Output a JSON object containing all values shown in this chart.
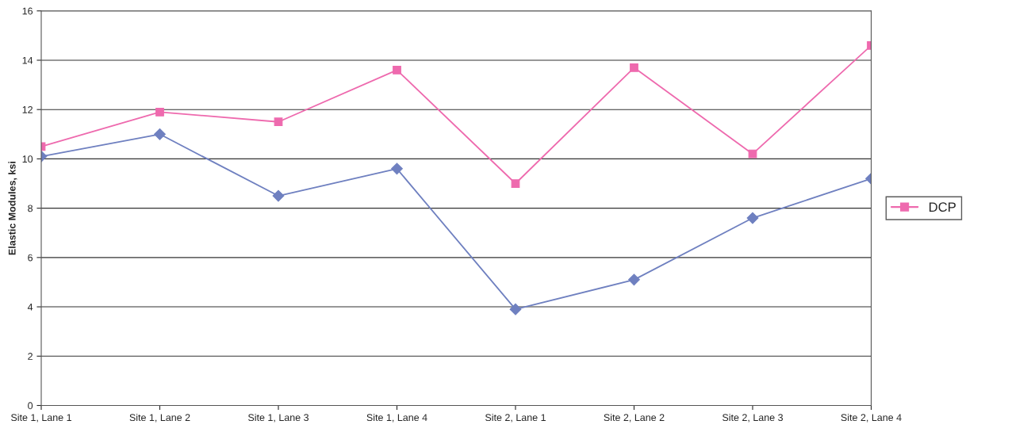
{
  "chart_data": {
    "type": "line",
    "ylabel": "Elastic Modules, ksi",
    "categories": [
      "Site 1, Lane 1",
      "Site 1, Lane 2",
      "Site 1, Lane 3",
      "Site 1, Lane 4",
      "Site 2, Lane 1",
      "Site 2, Lane 2",
      "Site 2, Lane 3",
      "Site 2, Lane 4"
    ],
    "series": [
      {
        "color": "#6f80c0",
        "marker": "diamond",
        "values": [
          10.1,
          11.0,
          8.5,
          9.6,
          3.9,
          5.1,
          7.6,
          9.2
        ]
      },
      {
        "name": "DCP",
        "color": "#ee6aae",
        "marker": "square",
        "values": [
          10.5,
          11.9,
          11.5,
          13.6,
          9.0,
          13.7,
          10.2,
          14.6
        ]
      }
    ],
    "ylim": [
      0,
      16
    ],
    "yticks": [
      0,
      2,
      4,
      6,
      8,
      10,
      12,
      14,
      16
    ],
    "grid": "y",
    "legend": "right"
  }
}
